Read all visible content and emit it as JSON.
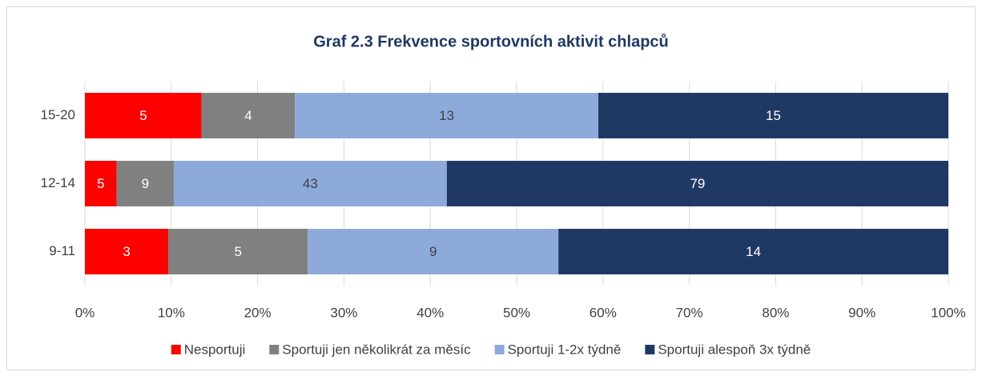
{
  "chart_data": {
    "type": "bar",
    "orientation": "horizontal",
    "stacking": "percent",
    "title": "Graf 2.3 Frekvence sportovních aktivit chlapců",
    "categories": [
      "15-20",
      "12-14",
      "9-11"
    ],
    "series": [
      {
        "name": "Nesportuji",
        "color": "#ff0000",
        "values": [
          5,
          5,
          3
        ]
      },
      {
        "name": "Sportuji jen několikrát za měsíc",
        "color": "#808080",
        "values": [
          4,
          9,
          5
        ]
      },
      {
        "name": "Sportuji 1-2x týdně",
        "color": "#8eaadb",
        "values": [
          13,
          43,
          9
        ]
      },
      {
        "name": "Sportuji alespoň 3x týdně",
        "color": "#203864",
        "values": [
          15,
          79,
          14
        ]
      }
    ],
    "xlim": [
      0,
      100
    ],
    "xticks": [
      {
        "value": 0,
        "label": "0%"
      },
      {
        "value": 10,
        "label": "10%"
      },
      {
        "value": 20,
        "label": "20%"
      },
      {
        "value": 30,
        "label": "30%"
      },
      {
        "value": 40,
        "label": "40%"
      },
      {
        "value": 50,
        "label": "50%"
      },
      {
        "value": 60,
        "label": "60%"
      },
      {
        "value": 70,
        "label": "70%"
      },
      {
        "value": 80,
        "label": "80%"
      },
      {
        "value": 90,
        "label": "90%"
      },
      {
        "value": 100,
        "label": "100%"
      }
    ],
    "grid": true,
    "legend": "bottom"
  }
}
